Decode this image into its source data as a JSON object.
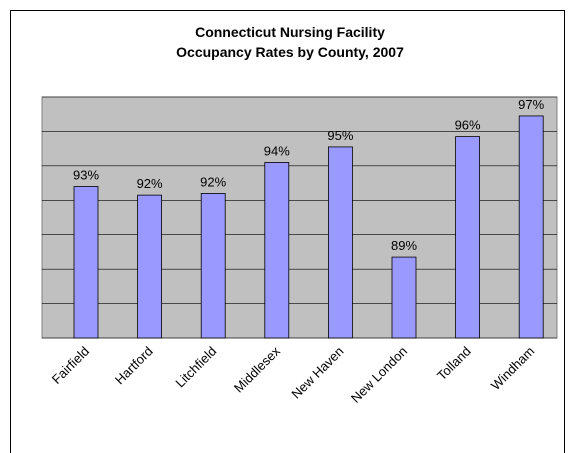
{
  "chart_data": {
    "type": "bar",
    "title": [
      "Connecticut Nursing Facility",
      "Occupancy Rates by County, 2007"
    ],
    "categories": [
      "Fairfield",
      "Hartford",
      "Litchfield",
      "Middlesex",
      "New Haven",
      "New London",
      "Tolland",
      "Windham"
    ],
    "values": [
      92.8,
      92.3,
      92.4,
      94.2,
      95.1,
      88.7,
      95.7,
      96.9
    ],
    "value_labels": [
      "93%",
      "92%",
      "92%",
      "94%",
      "95%",
      "89%",
      "96%",
      "97%"
    ],
    "color": "#9999ff",
    "ylim": [
      84,
      98
    ],
    "yticks": [
      84,
      86,
      88,
      90,
      92,
      94,
      96,
      98
    ],
    "grid": true
  }
}
